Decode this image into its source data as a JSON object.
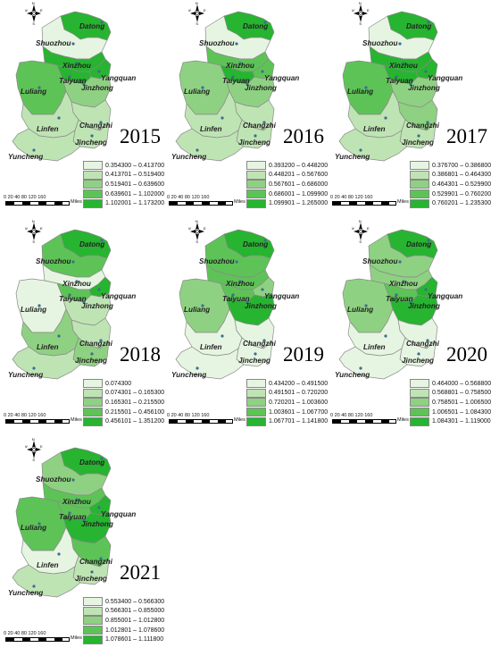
{
  "province_colors": [
    "#e6f5e1",
    "#bfe4b4",
    "#8fd182",
    "#5ec357",
    "#27b430"
  ],
  "cities": [
    "Datong",
    "Shuozhou",
    "Xinzhou",
    "Taiyuan",
    "Yangquan",
    "Luliang",
    "Jinzhong",
    "Linfen",
    "Changzhi",
    "Jincheng",
    "Yuncheng"
  ],
  "compass": {
    "n": "N",
    "s": "S",
    "w": "W",
    "e": "E"
  },
  "scale_bar": {
    "ticks": "0 20 40    80   120   160",
    "unit": "Miles"
  },
  "panels": [
    {
      "year": "2015",
      "legend": [
        "0.354300 – 0.413700",
        "0.413701 – 0.519400",
        "0.519401 – 0.639600",
        "0.639601 – 1.102000",
        "1.102001 – 1.173200"
      ],
      "classes": {
        "Datong": 4,
        "Shuozhou": 0,
        "Xinzhou": 4,
        "Taiyuan": 4,
        "Yangquan": 4,
        "Luliang": 3,
        "Jinzhong": 2,
        "Linfen": 1,
        "Changzhi": 1,
        "Jincheng": 1,
        "Yuncheng": 1
      }
    },
    {
      "year": "2016",
      "legend": [
        "0.393200 – 0.448200",
        "0.448201 – 0.567600",
        "0.567601 – 0.686000",
        "0.686001 – 1.099900",
        "1.099901 – 1.265000"
      ],
      "classes": {
        "Datong": 4,
        "Shuozhou": 0,
        "Xinzhou": 3,
        "Taiyuan": 4,
        "Yangquan": 3,
        "Luliang": 2,
        "Jinzhong": 2,
        "Linfen": 1,
        "Changzhi": 1,
        "Jincheng": 1,
        "Yuncheng": 1
      }
    },
    {
      "year": "2017",
      "legend": [
        "0.376700 – 0.386800",
        "0.386801 – 0.464300",
        "0.464301 – 0.529900",
        "0.529901 – 0.760200",
        "0.760201 – 1.235300"
      ],
      "classes": {
        "Datong": 4,
        "Shuozhou": 0,
        "Xinzhou": 4,
        "Taiyuan": 4,
        "Yangquan": 4,
        "Luliang": 3,
        "Jinzhong": 2,
        "Linfen": 1,
        "Changzhi": 2,
        "Jincheng": 1,
        "Yuncheng": 1
      }
    },
    {
      "year": "2018",
      "legend": [
        "0.074300",
        "0.074301 – 0.165300",
        "0.165301 – 0.215500",
        "0.215501 – 0.456100",
        "0.456101 – 1.351200"
      ],
      "classes": {
        "Datong": 4,
        "Shuozhou": 3,
        "Xinzhou": 0,
        "Taiyuan": 3,
        "Yangquan": 4,
        "Luliang": 0,
        "Jinzhong": 1,
        "Linfen": 2,
        "Changzhi": 1,
        "Jincheng": 2,
        "Yuncheng": 1
      }
    },
    {
      "year": "2019",
      "legend": [
        "0.434200 – 0.491500",
        "0.491501 – 0.720200",
        "0.720201 – 1.003600",
        "1.003601 – 1.067700",
        "1.067701 – 1.141800"
      ],
      "classes": {
        "Datong": 4,
        "Shuozhou": 3,
        "Xinzhou": 3,
        "Taiyuan": 3,
        "Yangquan": 2,
        "Luliang": 2,
        "Jinzhong": 4,
        "Linfen": 0,
        "Changzhi": 0,
        "Jincheng": 0,
        "Yuncheng": 0
      }
    },
    {
      "year": "2020",
      "legend": [
        "0.464000 – 0.568800",
        "0.568801 – 0.758500",
        "0.758501 – 1.006500",
        "1.006501 – 1.084300",
        "1.084301 – 1.119000"
      ],
      "classes": {
        "Datong": 4,
        "Shuozhou": 2,
        "Xinzhou": 2,
        "Taiyuan": 3,
        "Yangquan": 4,
        "Luliang": 2,
        "Jinzhong": 4,
        "Linfen": 0,
        "Changzhi": 0,
        "Jincheng": 0,
        "Yuncheng": 0
      }
    },
    {
      "year": "2021",
      "legend": [
        "0.553400 – 0.566300",
        "0.566301 – 0.855000",
        "0.855001 – 1.012800",
        "1.012801 – 1.078600",
        "1.078601 – 1.111800"
      ],
      "classes": {
        "Datong": 4,
        "Shuozhou": 2,
        "Xinzhou": 3,
        "Taiyuan": 3,
        "Yangquan": 4,
        "Luliang": 3,
        "Jinzhong": 4,
        "Linfen": 0,
        "Changzhi": 3,
        "Jincheng": 1,
        "Yuncheng": 1
      }
    }
  ]
}
